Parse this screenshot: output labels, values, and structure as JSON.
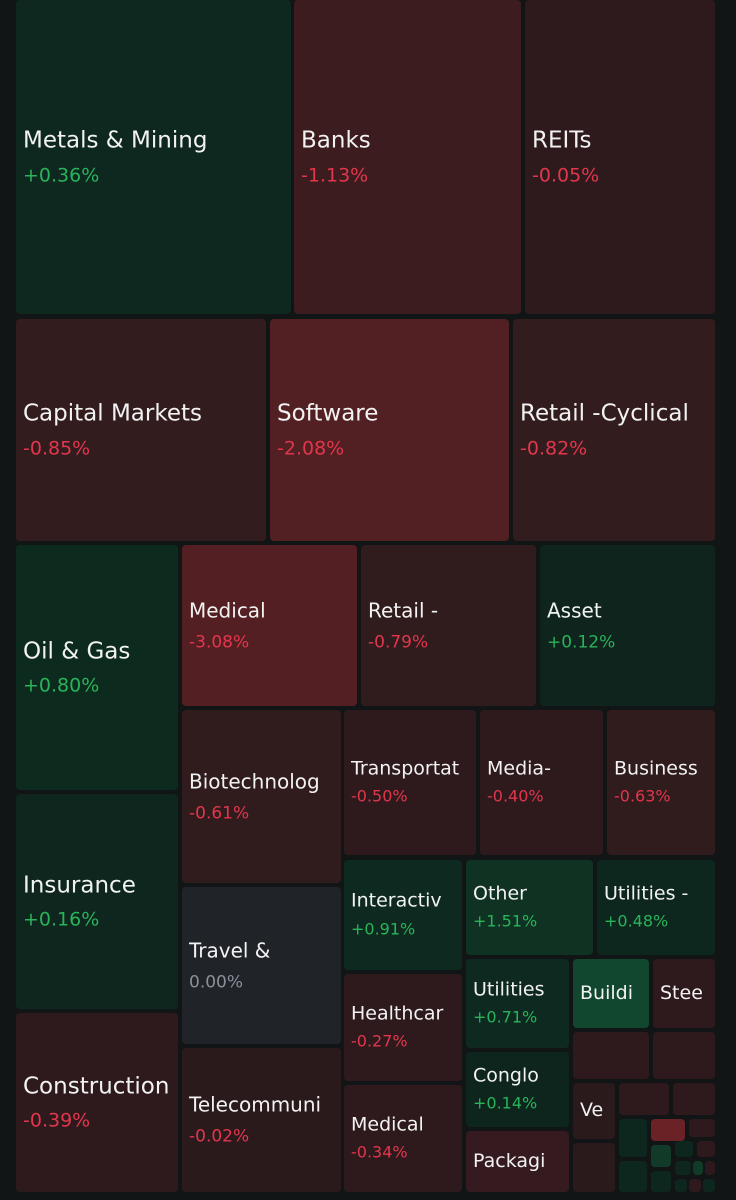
{
  "colors": {
    "background": "#121516",
    "positive_text": "#29b35a",
    "negative_text": "#e2364c",
    "neutral_text": "#8a8f99",
    "label_text": "#f2f2f2"
  },
  "heatmap": {
    "tiles": [
      {
        "name": "Metals & Mining",
        "change": "+0.36%",
        "trend": "pos",
        "size": "big",
        "fill": "#0e2820",
        "box": [
          16,
          0,
          275,
          314
        ]
      },
      {
        "name": "Banks",
        "change": "-1.13%",
        "trend": "neg",
        "size": "big",
        "fill": "#3d1c1f",
        "box": [
          294,
          0,
          227,
          314
        ]
      },
      {
        "name": "REITs",
        "change": "-0.05%",
        "trend": "neg",
        "size": "big",
        "fill": "#2e1a1c",
        "box": [
          525,
          0,
          190,
          314
        ]
      },
      {
        "name": "Capital Markets",
        "change": "-0.85%",
        "trend": "neg",
        "size": "big",
        "fill": "#331c1e",
        "box": [
          16,
          319,
          250,
          222
        ]
      },
      {
        "name": "Software",
        "change": "-2.08%",
        "trend": "neg",
        "size": "big",
        "fill": "#521f22",
        "box": [
          270,
          319,
          239,
          222
        ]
      },
      {
        "name": "Retail -Cyclical",
        "change": "-0.82%",
        "trend": "neg",
        "size": "big",
        "fill": "#331c1e",
        "box": [
          513,
          319,
          202,
          222
        ]
      },
      {
        "name": "Oil & Gas",
        "change": "+0.80%",
        "trend": "pos",
        "size": "big",
        "fill": "#0d2a1e",
        "box": [
          16,
          545,
          162,
          245
        ]
      },
      {
        "name": "Insurance",
        "change": "+0.16%",
        "trend": "pos",
        "size": "big",
        "fill": "#0e261e",
        "box": [
          16,
          794,
          162,
          215
        ]
      },
      {
        "name": "Construction",
        "change": "-0.39%",
        "trend": "neg",
        "size": "big",
        "fill": "#2e1a1c",
        "box": [
          16,
          1013,
          162,
          179
        ]
      },
      {
        "name": "Medical",
        "change": "-3.08%",
        "trend": "neg",
        "size": "mid",
        "fill": "#541f22",
        "box": [
          182,
          545,
          175,
          161
        ]
      },
      {
        "name": "Retail -",
        "change": "-0.79%",
        "trend": "neg",
        "size": "mid",
        "fill": "#301b1d",
        "box": [
          361,
          545,
          175,
          161
        ]
      },
      {
        "name": "Asset",
        "change": "+0.12%",
        "trend": "pos",
        "size": "mid",
        "fill": "#0e241d",
        "box": [
          540,
          545,
          175,
          161
        ]
      },
      {
        "name": "Biotechnolog",
        "change": "-0.61%",
        "trend": "neg",
        "size": "mid",
        "fill": "#301b1d",
        "box": [
          182,
          710,
          159,
          173
        ]
      },
      {
        "name": "Travel &",
        "change": "0.00%",
        "trend": "zero",
        "size": "mid",
        "fill": "#202428",
        "box": [
          182,
          887,
          159,
          157
        ]
      },
      {
        "name": "Telecommuni",
        "change": "-0.02%",
        "trend": "neg",
        "size": "mid",
        "fill": "#2a1a1c",
        "box": [
          182,
          1048,
          159,
          144
        ]
      },
      {
        "name": "Transportat",
        "change": "-0.50%",
        "trend": "neg",
        "size": "small",
        "fill": "#2e1a1c",
        "box": [
          344,
          710,
          132,
          145
        ]
      },
      {
        "name": "Media-",
        "change": "-0.40%",
        "trend": "neg",
        "size": "small",
        "fill": "#2e1a1c",
        "box": [
          480,
          710,
          123,
          145
        ]
      },
      {
        "name": "Business",
        "change": "-0.63%",
        "trend": "neg",
        "size": "small",
        "fill": "#301b1d",
        "box": [
          607,
          710,
          108,
          145
        ]
      },
      {
        "name": "Interactiv",
        "change": "+0.91%",
        "trend": "pos",
        "size": "small",
        "fill": "#0e291f",
        "box": [
          344,
          860,
          118,
          110
        ]
      },
      {
        "name": "Healthcar",
        "change": "-0.27%",
        "trend": "neg",
        "size": "small",
        "fill": "#2e1a1c",
        "box": [
          344,
          974,
          118,
          107
        ]
      },
      {
        "name": "Medical",
        "change": "-0.34%",
        "trend": "neg",
        "size": "small",
        "fill": "#2e1a1c",
        "box": [
          344,
          1085,
          118,
          107
        ]
      },
      {
        "name": "Other",
        "change": "+1.51%",
        "trend": "pos",
        "size": "small",
        "fill": "#0f3222",
        "box": [
          466,
          860,
          127,
          95
        ]
      },
      {
        "name": "Utilities -",
        "change": "+0.48%",
        "trend": "pos",
        "size": "small",
        "fill": "#0e271e",
        "box": [
          597,
          860,
          118,
          95
        ]
      },
      {
        "name": "Utilities",
        "change": "+0.71%",
        "trend": "pos",
        "size": "small",
        "fill": "#0e291f",
        "box": [
          466,
          959,
          103,
          89
        ]
      },
      {
        "name": "Conglo",
        "change": "+0.14%",
        "trend": "pos",
        "size": "small",
        "fill": "#0e251d",
        "box": [
          466,
          1052,
          103,
          75
        ]
      },
      {
        "name": "Packagi",
        "change": "",
        "trend": "neg",
        "size": "tiny",
        "fill": "#351b1f",
        "box": [
          466,
          1131,
          103,
          61
        ]
      },
      {
        "name": "Buildi",
        "change": "",
        "trend": "pos",
        "size": "tiny",
        "fill": "#11472f",
        "box": [
          573,
          959,
          76,
          69
        ]
      },
      {
        "name": "Stee",
        "change": "",
        "trend": "neg",
        "size": "tiny",
        "fill": "#2e1a1c",
        "box": [
          653,
          959,
          62,
          69
        ]
      },
      {
        "name": "Ve",
        "change": "",
        "trend": "neg",
        "size": "tiny",
        "fill": "#2a1a1c",
        "box": [
          573,
          1083,
          42,
          56
        ]
      }
    ],
    "blocks": [
      {
        "fill": "#2e1a1c",
        "box": [
          573,
          1032,
          76,
          47
        ]
      },
      {
        "fill": "#2e1a1c",
        "box": [
          653,
          1032,
          62,
          47
        ]
      },
      {
        "fill": "#2a1a1c",
        "box": [
          573,
          1143,
          42,
          49
        ]
      },
      {
        "fill": "#2e1a1c",
        "box": [
          619,
          1083,
          50,
          32
        ]
      },
      {
        "fill": "#2e1a1c",
        "box": [
          673,
          1083,
          42,
          32
        ]
      },
      {
        "fill": "#0e271e",
        "box": [
          619,
          1119,
          28,
          38
        ]
      },
      {
        "fill": "#0e271e",
        "box": [
          619,
          1161,
          28,
          31
        ]
      },
      {
        "fill": "#6a2226",
        "box": [
          651,
          1119,
          34,
          22
        ]
      },
      {
        "fill": "#123a28",
        "box": [
          651,
          1145,
          20,
          22
        ]
      },
      {
        "fill": "#0e271e",
        "box": [
          651,
          1171,
          20,
          21
        ]
      },
      {
        "fill": "#2e1a1c",
        "box": [
          689,
          1119,
          26,
          18
        ]
      },
      {
        "fill": "#0e271e",
        "box": [
          675,
          1141,
          18,
          16
        ]
      },
      {
        "fill": "#2e1a1c",
        "box": [
          697,
          1141,
          18,
          16
        ]
      },
      {
        "fill": "#0e271e",
        "box": [
          675,
          1161,
          16,
          14
        ]
      },
      {
        "fill": "#123a28",
        "box": [
          693,
          1161,
          10,
          14
        ]
      },
      {
        "fill": "#2e1a1c",
        "box": [
          705,
          1161,
          10,
          14
        ]
      },
      {
        "fill": "#0e271e",
        "box": [
          675,
          1179,
          12,
          13
        ]
      },
      {
        "fill": "#2e1a1c",
        "box": [
          689,
          1179,
          12,
          13
        ]
      },
      {
        "fill": "#0e271e",
        "box": [
          703,
          1179,
          12,
          13
        ]
      }
    ]
  }
}
